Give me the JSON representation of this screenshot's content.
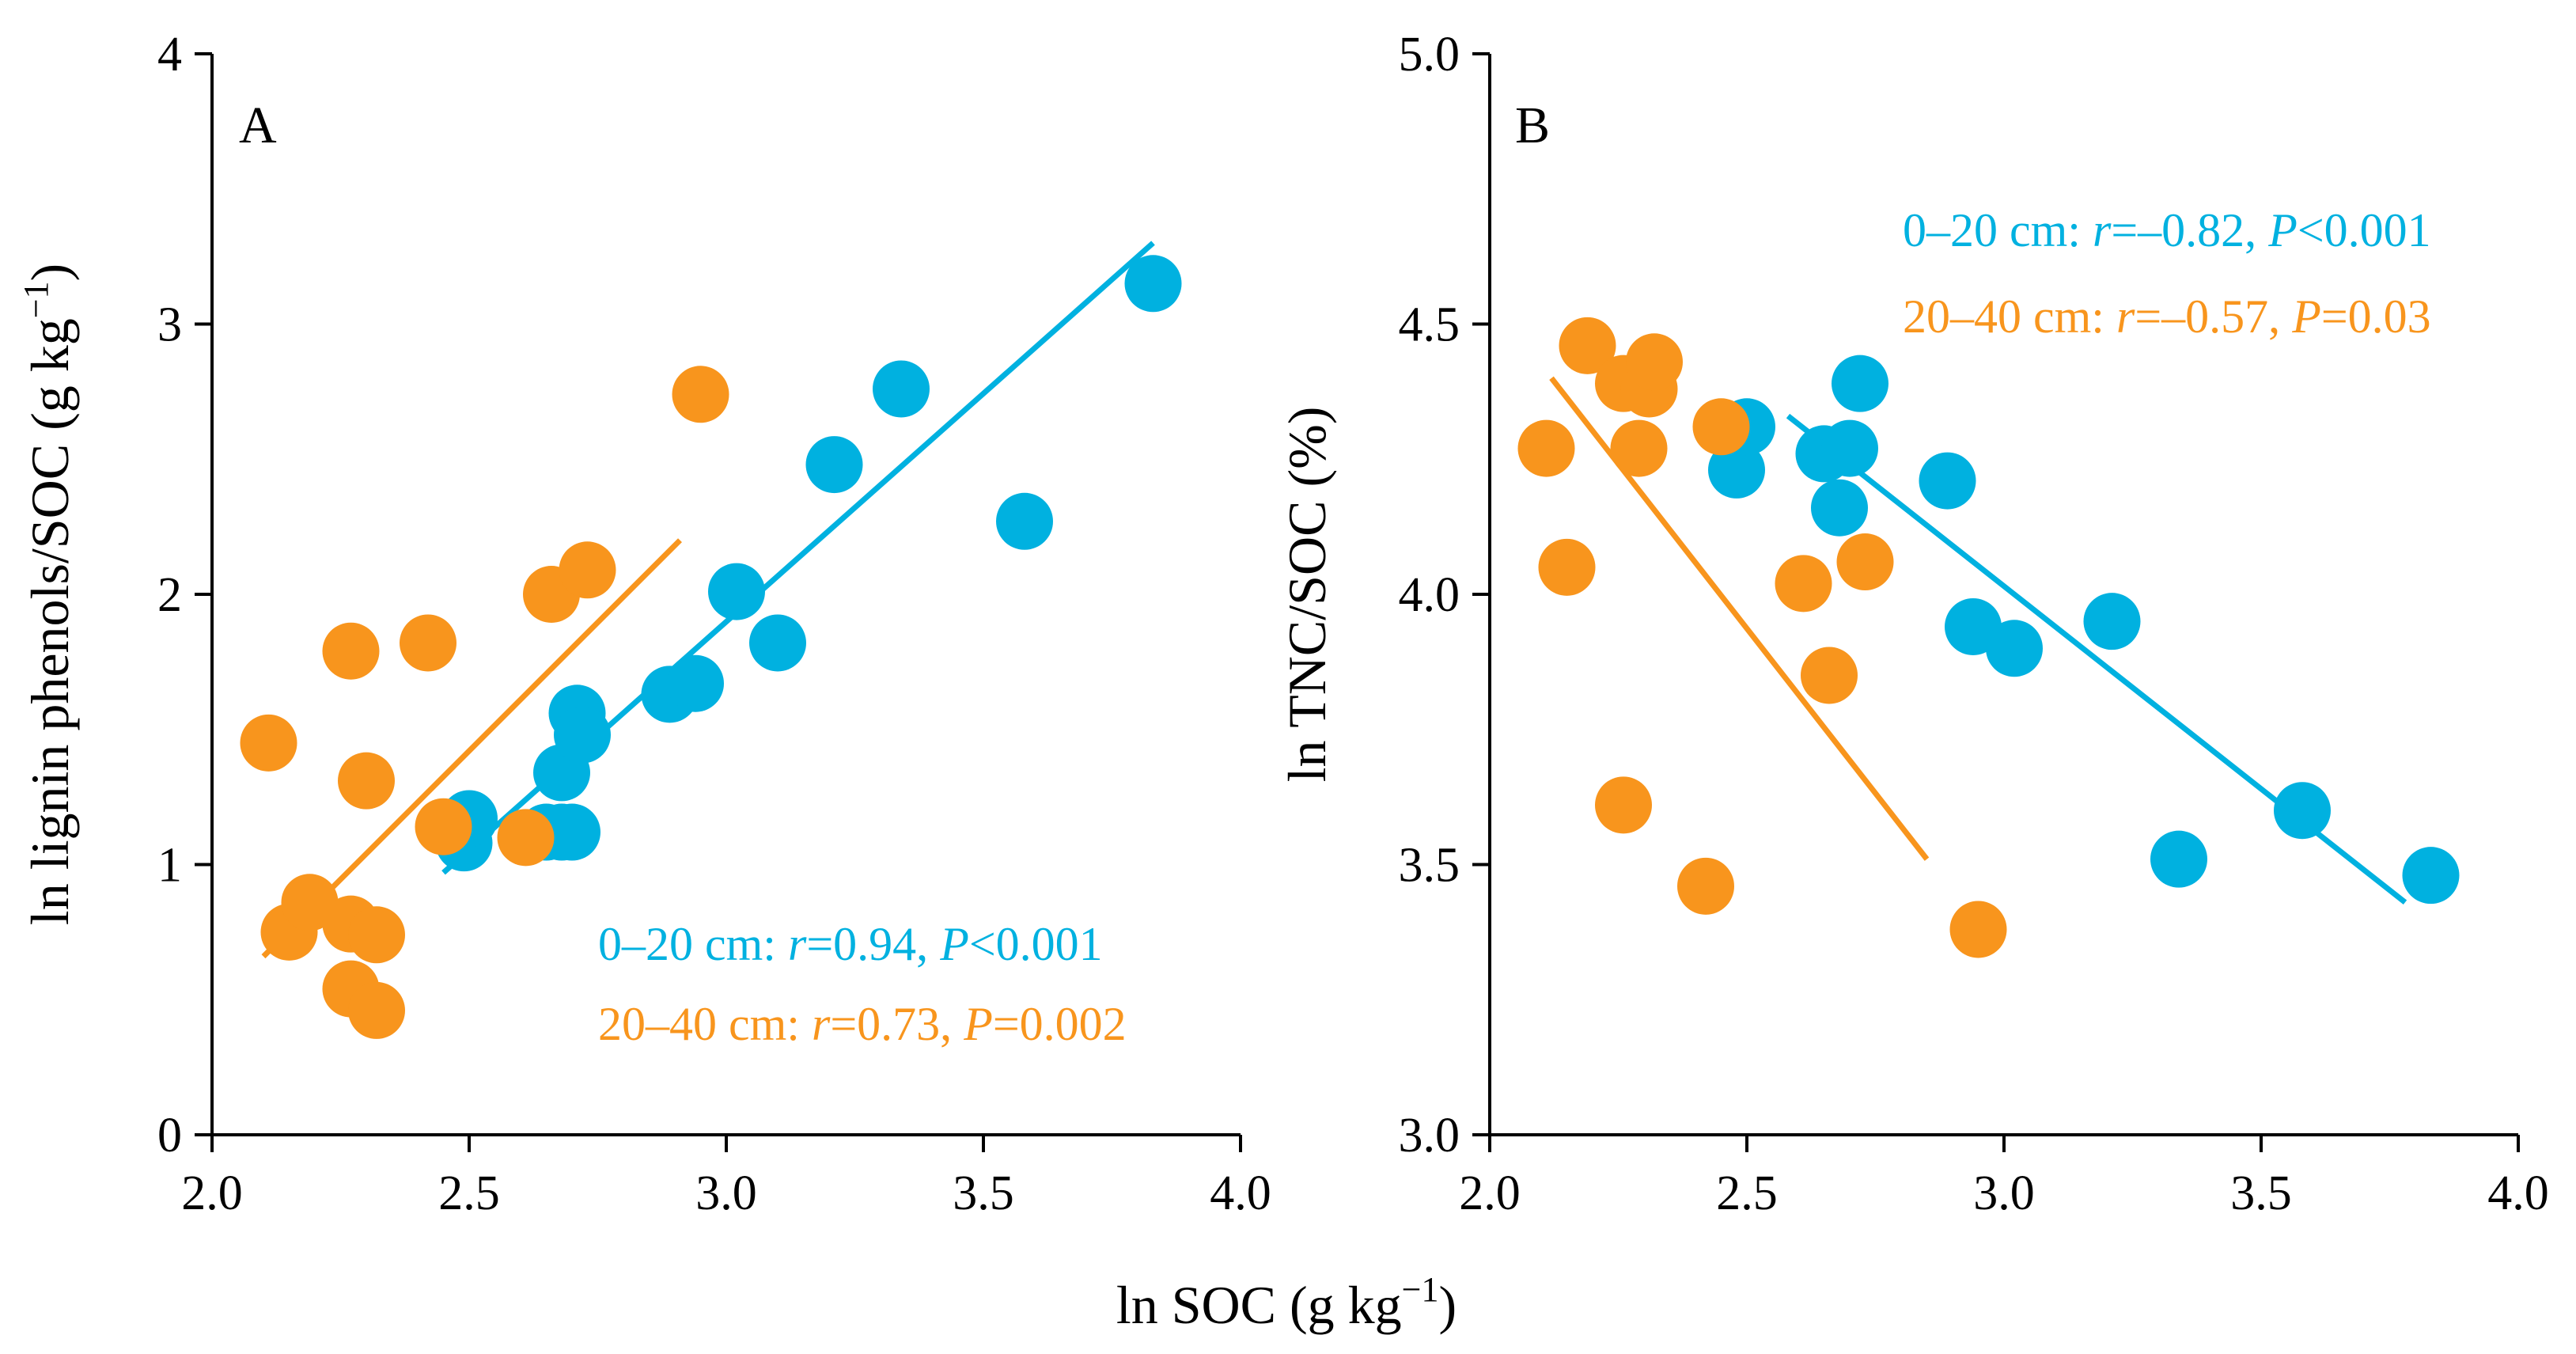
{
  "colors": {
    "series_0_20": "#00b1e0",
    "series_20_40": "#f8951d",
    "axis": "#000000"
  },
  "shared_xlabel": {
    "main": "ln SOC (g kg",
    "sup": "−1",
    "close": ")"
  },
  "chart_data": [
    {
      "type": "scatter",
      "panel_label": "A",
      "ylabel": {
        "main": "ln lignin phenols/SOC (g kg",
        "sup": "−1",
        "close": ")"
      },
      "xlim": [
        2.0,
        4.0
      ],
      "ylim": [
        0,
        4
      ],
      "x_ticks": [
        "2.0",
        "2.5",
        "3.0",
        "3.5",
        "4.0"
      ],
      "y_ticks": [
        "0",
        "1",
        "2",
        "3",
        "4"
      ],
      "series": [
        {
          "name": "0–20 cm",
          "points": [
            [
              2.49,
              1.08
            ],
            [
              2.5,
              1.17
            ],
            [
              2.65,
              1.12
            ],
            [
              2.68,
              1.12
            ],
            [
              2.7,
              1.12
            ],
            [
              2.68,
              1.34
            ],
            [
              2.71,
              1.56
            ],
            [
              2.72,
              1.48
            ],
            [
              2.89,
              1.63
            ],
            [
              2.94,
              1.67
            ],
            [
              3.02,
              2.01
            ],
            [
              3.1,
              1.82
            ],
            [
              3.21,
              2.48
            ],
            [
              3.34,
              2.76
            ],
            [
              3.58,
              2.27
            ],
            [
              3.83,
              3.15
            ]
          ],
          "fit": {
            "x": [
              2.45,
              3.83
            ],
            "y": [
              0.97,
              3.3
            ]
          },
          "annotation": {
            "label": "0–20 cm: ",
            "r_sym": "r",
            "r_val": "=0.94, ",
            "p_sym": "P",
            "p_val": "<0.001"
          }
        },
        {
          "name": "20–40 cm",
          "points": [
            [
              2.11,
              1.45
            ],
            [
              2.15,
              0.75
            ],
            [
              2.19,
              0.86
            ],
            [
              2.27,
              0.54
            ],
            [
              2.27,
              0.78
            ],
            [
              2.27,
              1.79
            ],
            [
              2.3,
              1.31
            ],
            [
              2.32,
              0.74
            ],
            [
              2.32,
              0.46
            ],
            [
              2.42,
              1.82
            ],
            [
              2.45,
              1.14
            ],
            [
              2.61,
              1.1
            ],
            [
              2.66,
              2.0
            ],
            [
              2.73,
              2.09
            ],
            [
              2.95,
              2.74
            ]
          ],
          "fit": {
            "x": [
              2.1,
              2.91
            ],
            "y": [
              0.66,
              2.2
            ]
          },
          "annotation": {
            "label": "20–40 cm: ",
            "r_sym": "r",
            "r_val": "=0.73, ",
            "p_sym": "P",
            "p_val": "=0.002"
          }
        }
      ]
    },
    {
      "type": "scatter",
      "panel_label": "B",
      "ylabel": {
        "main": "ln TNC/SOC (%)"
      },
      "xlim": [
        2.0,
        4.0
      ],
      "ylim": [
        3.0,
        5.0
      ],
      "x_ticks": [
        "2.0",
        "2.5",
        "3.0",
        "3.5",
        "4.0"
      ],
      "y_ticks": [
        "3.0",
        "3.5",
        "4.0",
        "4.5",
        "5.0"
      ],
      "series": [
        {
          "name": "0–20 cm",
          "points": [
            [
              2.48,
              4.23
            ],
            [
              2.5,
              4.31
            ],
            [
              2.65,
              4.26
            ],
            [
              2.68,
              4.16
            ],
            [
              2.7,
              4.27
            ],
            [
              2.72,
              4.39
            ],
            [
              2.89,
              4.21
            ],
            [
              2.94,
              3.94
            ],
            [
              3.02,
              3.9
            ],
            [
              3.21,
              3.95
            ],
            [
              3.34,
              3.51
            ],
            [
              3.58,
              3.6
            ],
            [
              3.83,
              3.48
            ]
          ],
          "fit": {
            "x": [
              2.58,
              3.78
            ],
            "y": [
              4.33,
              3.43
            ]
          },
          "annotation": {
            "label": "0–20 cm: ",
            "r_sym": "r",
            "r_val": "=–0.82, ",
            "p_sym": "P",
            "p_val": "<0.001"
          }
        },
        {
          "name": "20–40 cm",
          "points": [
            [
              2.11,
              4.27
            ],
            [
              2.15,
              4.05
            ],
            [
              2.19,
              4.46
            ],
            [
              2.26,
              4.39
            ],
            [
              2.26,
              3.61
            ],
            [
              2.29,
              4.27
            ],
            [
              2.31,
              4.38
            ],
            [
              2.32,
              4.43
            ],
            [
              2.42,
              3.46
            ],
            [
              2.45,
              4.31
            ],
            [
              2.61,
              4.02
            ],
            [
              2.66,
              3.85
            ],
            [
              2.73,
              4.06
            ],
            [
              2.95,
              3.38
            ]
          ],
          "fit": {
            "x": [
              2.12,
              2.85
            ],
            "y": [
              4.4,
              3.51
            ]
          },
          "annotation": {
            "label": "20–40 cm: ",
            "r_sym": "r",
            "r_val": "=–0.57, ",
            "p_sym": "P",
            "p_val": "=0.03"
          }
        }
      ]
    }
  ]
}
